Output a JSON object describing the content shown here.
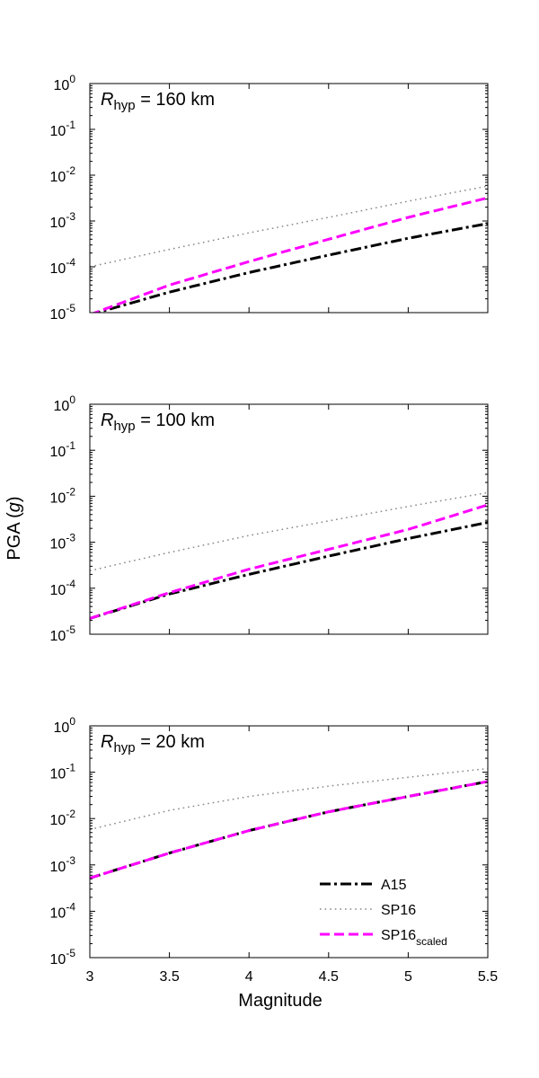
{
  "figure": {
    "ylabel_main": "PGA (",
    "ylabel_italic": "g",
    "ylabel_close": ")",
    "xlabel": "Magnitude"
  },
  "legend": {
    "entries": [
      {
        "label": "A15",
        "sub": ""
      },
      {
        "label": "SP16",
        "sub": ""
      },
      {
        "label": "SP16",
        "sub": "scaled"
      }
    ]
  },
  "chart_data": [
    {
      "type": "line",
      "annotation": {
        "symbol": "R",
        "subscript": "hyp",
        "text": " = 160 km"
      },
      "xlim": [
        3,
        5.5
      ],
      "ylim": [
        1e-05,
        1
      ],
      "yscale": "log",
      "grid": false,
      "x_ticks": [
        "3",
        "3.5",
        "4",
        "4.5",
        "5",
        "5.5"
      ],
      "x_ticklabels_visible": false,
      "y_ticks": [
        {
          "base": "10",
          "exp": "-5"
        },
        {
          "base": "10",
          "exp": "-4"
        },
        {
          "base": "10",
          "exp": "-3"
        },
        {
          "base": "10",
          "exp": "-2"
        },
        {
          "base": "10",
          "exp": "-1"
        },
        {
          "base": "10",
          "exp": "0"
        }
      ],
      "x": [
        3.0,
        3.5,
        4.0,
        4.5,
        5.0,
        5.5
      ],
      "series": [
        {
          "name": "A15",
          "values": [
            9e-06,
            2.8e-05,
            7.5e-05,
            0.00018,
            0.00042,
            0.00088
          ]
        },
        {
          "name": "SP16",
          "values": [
            0.0001,
            0.00024,
            0.00055,
            0.0012,
            0.0027,
            0.0058
          ]
        },
        {
          "name": "SP16_scaled",
          "values": [
            9e-06,
            4e-05,
            0.00013,
            0.0004,
            0.0012,
            0.0032
          ]
        }
      ]
    },
    {
      "type": "line",
      "annotation": {
        "symbol": "R",
        "subscript": "hyp",
        "text": " = 100 km"
      },
      "xlim": [
        3,
        5.5
      ],
      "ylim": [
        1e-05,
        1
      ],
      "yscale": "log",
      "grid": false,
      "x_ticks": [
        "3",
        "3.5",
        "4",
        "4.5",
        "5",
        "5.5"
      ],
      "x_ticklabels_visible": false,
      "y_ticks": [
        {
          "base": "10",
          "exp": "-5"
        },
        {
          "base": "10",
          "exp": "-4"
        },
        {
          "base": "10",
          "exp": "-3"
        },
        {
          "base": "10",
          "exp": "-2"
        },
        {
          "base": "10",
          "exp": "-1"
        },
        {
          "base": "10",
          "exp": "0"
        }
      ],
      "x": [
        3.0,
        3.5,
        4.0,
        4.5,
        5.0,
        5.5
      ],
      "series": [
        {
          "name": "A15",
          "values": [
            2.2e-05,
            7.5e-05,
            0.0002,
            0.0005,
            0.0012,
            0.0027
          ]
        },
        {
          "name": "SP16",
          "values": [
            0.00024,
            0.0006,
            0.0014,
            0.0029,
            0.006,
            0.012
          ]
        },
        {
          "name": "SP16_scaled",
          "values": [
            2.2e-05,
            8e-05,
            0.00026,
            0.0007,
            0.0019,
            0.0065
          ]
        }
      ]
    },
    {
      "type": "line",
      "annotation": {
        "symbol": "R",
        "subscript": "hyp",
        "text": " = 20 km"
      },
      "xlim": [
        3,
        5.5
      ],
      "ylim": [
        1e-05,
        1
      ],
      "yscale": "log",
      "grid": false,
      "x_ticks": [
        "3",
        "3.5",
        "4",
        "4.5",
        "5",
        "5.5"
      ],
      "x_ticklabels_visible": true,
      "y_ticks": [
        {
          "base": "10",
          "exp": "-5"
        },
        {
          "base": "10",
          "exp": "-4"
        },
        {
          "base": "10",
          "exp": "-3"
        },
        {
          "base": "10",
          "exp": "-2"
        },
        {
          "base": "10",
          "exp": "-1"
        },
        {
          "base": "10",
          "exp": "0"
        }
      ],
      "x": [
        3.0,
        3.5,
        4.0,
        4.5,
        5.0,
        5.5
      ],
      "series": [
        {
          "name": "A15",
          "values": [
            0.00052,
            0.0018,
            0.0055,
            0.014,
            0.03,
            0.063
          ]
        },
        {
          "name": "SP16",
          "values": [
            0.0058,
            0.015,
            0.03,
            0.05,
            0.078,
            0.12
          ]
        },
        {
          "name": "SP16_scaled",
          "values": [
            0.00052,
            0.0018,
            0.0055,
            0.014,
            0.03,
            0.063
          ]
        }
      ]
    }
  ],
  "styles": {
    "A15": {
      "color": "#000000",
      "dash": "dashdot"
    },
    "SP16": {
      "color": "#888888",
      "dash": "dotted"
    },
    "SP16_scaled": {
      "color": "#ff00ff",
      "dash": "dashed"
    }
  }
}
